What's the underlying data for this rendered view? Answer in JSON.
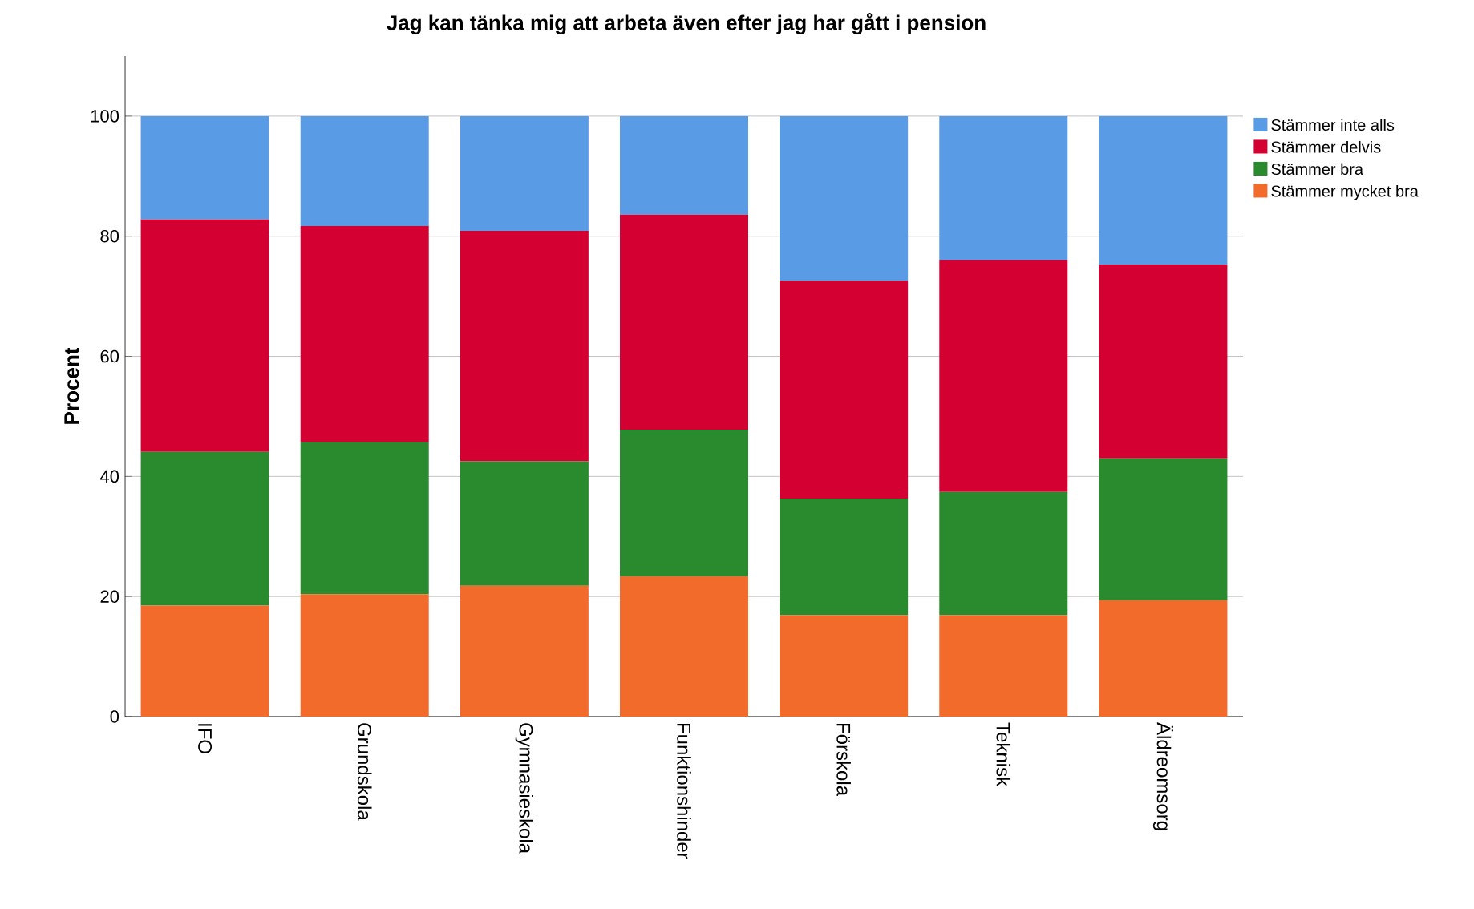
{
  "chart_data": {
    "type": "bar",
    "stacked": true,
    "title": "Jag kan tänka mig att arbeta även efter jag har gått i pension",
    "ylabel": "Procent",
    "categories": [
      "IFO",
      "Grundskola",
      "Gymnasieskola",
      "Funktionshinder",
      "Förskola",
      "Teknisk",
      "Äldreomsorg"
    ],
    "series": [
      {
        "name": "Stämmer mycket bra",
        "color": "#f26b2b",
        "values": [
          18.5,
          20.4,
          21.8,
          23.4,
          16.9,
          16.9,
          19.4
        ]
      },
      {
        "name": "Stämmer bra",
        "color": "#2a8a2e",
        "values": [
          25.6,
          25.3,
          20.7,
          24.4,
          19.4,
          20.5,
          23.6
        ]
      },
      {
        "name": "Stämmer delvis",
        "color": "#d40032",
        "values": [
          38.7,
          36.0,
          38.4,
          35.8,
          36.3,
          38.7,
          32.3
        ]
      },
      {
        "name": "Stämmer inte alls",
        "color": "#5a9be6",
        "values": [
          17.2,
          18.3,
          19.1,
          16.4,
          27.4,
          23.9,
          24.7
        ]
      }
    ],
    "ylim": [
      0,
      110
    ],
    "yticks": [
      0,
      20,
      40,
      60,
      80,
      100
    ],
    "grid": "y",
    "legend": "top right"
  }
}
